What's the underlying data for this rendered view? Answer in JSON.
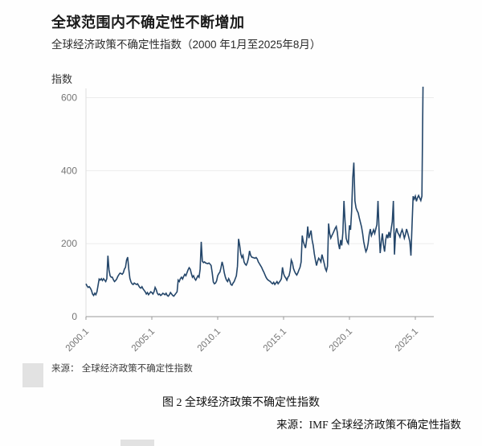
{
  "header": {
    "title": "全球范围内不确定性不断增加",
    "subtitle": "全球经济政策不确定性指数（2000 年1月至2025年8月）"
  },
  "footer": {
    "source_note": "来源： 全球经济政策不确定性指数",
    "caption": "图 2  全球经济政策不确定性指数",
    "caption_source": "来源：IMF 全球经济政策不确定性指数"
  },
  "chart_data": {
    "type": "line",
    "title": "全球范围内不确定性不断增加",
    "subtitle": "全球经济政策不确定性指数（2000 年1月至2025年8月）",
    "xlabel": "",
    "ylabel": "指数",
    "ylim": [
      0,
      660
    ],
    "xlim_years": [
      2000.0,
      2025.75
    ],
    "grid": "horizontal",
    "legend": "none",
    "line_color": "#24466a",
    "grid_color": "#ececec",
    "axis_color": "#9a9a9a",
    "tick_label_color": "#757575",
    "y_ticks": [
      0,
      200,
      400,
      600
    ],
    "x_tick_labels": [
      "2000.1",
      "2005.1",
      "2010.1",
      "2015.1",
      "2020.1",
      "2025.1"
    ],
    "x_tick_years": [
      2000,
      2005,
      2010,
      2015,
      2020,
      2025
    ],
    "series": [
      {
        "name": "全球经济政策不确定性指数",
        "frequency": "monthly",
        "start_year": 2000,
        "start_month": 1,
        "end_year": 2025,
        "end_month": 8,
        "values": [
          90,
          84,
          80,
          82,
          78,
          72,
          62,
          58,
          64,
          60,
          68,
          85,
          103,
          100,
          104,
          99,
          104,
          100,
          96,
          104,
          167,
          128,
          112,
          108,
          108,
          101,
          96,
          99,
          103,
          110,
          115,
          119,
          118,
          116,
          120,
          130,
          135,
          155,
          163,
          130,
          105,
          95,
          90,
          88,
          92,
          90,
          88,
          90,
          85,
          80,
          78,
          82,
          76,
          72,
          68,
          62,
          66,
          60,
          64,
          68,
          66,
          62,
          68,
          80,
          74,
          64,
          60,
          62,
          58,
          60,
          64,
          62,
          60,
          64,
          58,
          56,
          60,
          66,
          62,
          58,
          56,
          60,
          64,
          68,
          100,
          96,
          104,
          108,
          103,
          110,
          116,
          112,
          120,
          128,
          134,
          130,
          118,
          108,
          112,
          104,
          100,
          106,
          112,
          108,
          130,
          205,
          152,
          148,
          150,
          147,
          146,
          145,
          147,
          144,
          140,
          120,
          95,
          90,
          92,
          98,
          112,
          118,
          122,
          134,
          150,
          138,
          120,
          108,
          100,
          96,
          104,
          98,
          88,
          86,
          92,
          96,
          104,
          112,
          138,
          213,
          196,
          172,
          162,
          168,
          150,
          144,
          141,
          148,
          160,
          180,
          168,
          163,
          162,
          161,
          160,
          162,
          158,
          150,
          145,
          140,
          135,
          128,
          122,
          115,
          108,
          103,
          100,
          98,
          96,
          92,
          90,
          94,
          88,
          92,
          96,
          90,
          94,
          98,
          104,
          135,
          118,
          110,
          106,
          100,
          108,
          112,
          126,
          155,
          148,
          132,
          124,
          118,
          114,
          120,
          128,
          135,
          150,
          222,
          205,
          196,
          188,
          210,
          247,
          215,
          225,
          236,
          210,
          195,
          172,
          155,
          140,
          152,
          160,
          156,
          150,
          170,
          158,
          146,
          132,
          125,
          138,
          255,
          228,
          215,
          222,
          228,
          235,
          242,
          247,
          230,
          200,
          185,
          210,
          195,
          230,
          317,
          260,
          215,
          205,
          200,
          250,
          238,
          290,
          380,
          422,
          317,
          298,
          290,
          284,
          270,
          258,
          246,
          228,
          205,
          190,
          178,
          185,
          200,
          225,
          240,
          222,
          230,
          238,
          228,
          240,
          252,
          317,
          235,
          174,
          205,
          228,
          196,
          178,
          210,
          225,
          215,
          232,
          216,
          240,
          260,
          317,
          170,
          228,
          242,
          230,
          225,
          218,
          230,
          238,
          228,
          215,
          225,
          240,
          230,
          218,
          205,
          167,
          250,
          330,
          322,
          330,
          316,
          326,
          332,
          325,
          318,
          330,
          630
        ]
      }
    ]
  }
}
